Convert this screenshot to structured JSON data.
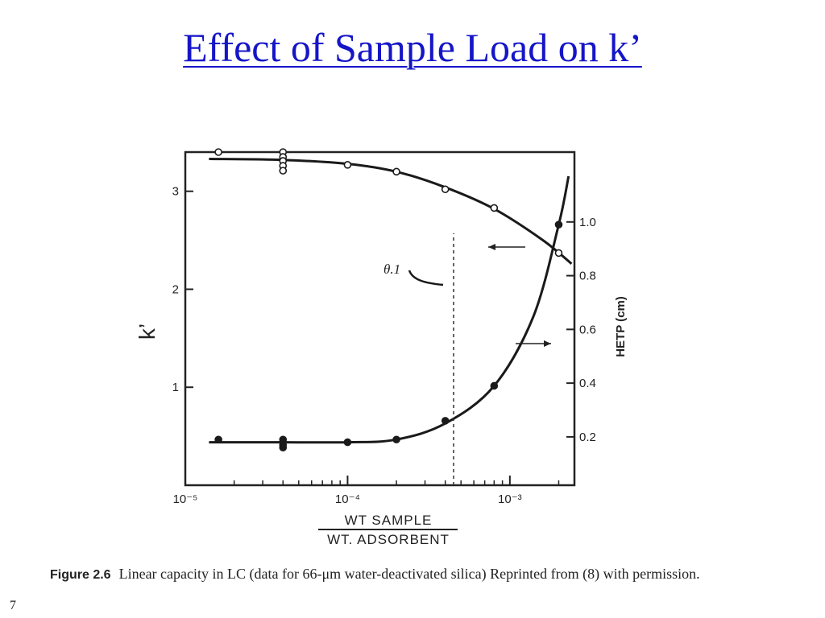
{
  "slide": {
    "title": "Effect of Sample Load on k’",
    "number": "7"
  },
  "caption": {
    "label": "Figure 2.6",
    "text": "Linear capacity in LC (data for 66-μm water-deactivated silica) Reprinted from (8) with permission."
  },
  "chart_data": {
    "type": "scatter",
    "x_scale": "log",
    "xlim": [
      1e-05,
      0.0025
    ],
    "x_ticks": [
      {
        "value": 1e-05,
        "label": "10⁻⁵"
      },
      {
        "value": 0.0001,
        "label": "10⁻⁴"
      },
      {
        "value": 0.001,
        "label": "10⁻³"
      }
    ],
    "xlabel_numerator": "WT SAMPLE",
    "xlabel_denominator": "WT. ADSORBENT",
    "ylabel": "k’",
    "ylim": [
      0,
      3.4
    ],
    "y_ticks": [
      {
        "value": 1,
        "label": "1"
      },
      {
        "value": 2,
        "label": "2"
      },
      {
        "value": 3,
        "label": "3"
      }
    ],
    "y2label": "HETP (cm)",
    "y2lim": [
      0.02,
      1.26
    ],
    "y2_ticks": [
      {
        "value": 0.2,
        "label": "0.2"
      },
      {
        "value": 0.4,
        "label": "0.4"
      },
      {
        "value": 0.6,
        "label": "0.6"
      },
      {
        "value": 0.8,
        "label": "0.8"
      },
      {
        "value": 1.0,
        "label": "1.0"
      }
    ],
    "annotation": {
      "text": "θ.1",
      "x": 0.00045
    },
    "series": [
      {
        "axis": "left",
        "marker": "open-circle",
        "points": [
          {
            "x": 1.6e-05,
            "y": 3.4
          },
          {
            "x": 4e-05,
            "y": 3.4
          },
          {
            "x": 4e-05,
            "y": 3.35
          },
          {
            "x": 4e-05,
            "y": 3.31
          },
          {
            "x": 4e-05,
            "y": 3.26
          },
          {
            "x": 4e-05,
            "y": 3.21
          },
          {
            "x": 0.0001,
            "y": 3.27
          },
          {
            "x": 0.0002,
            "y": 3.2
          },
          {
            "x": 0.0004,
            "y": 3.02
          },
          {
            "x": 0.0008,
            "y": 2.83
          },
          {
            "x": 0.002,
            "y": 2.37
          }
        ],
        "curve": [
          {
            "x": 1.4e-05,
            "y": 3.33
          },
          {
            "x": 4e-05,
            "y": 3.32
          },
          {
            "x": 0.0001,
            "y": 3.28
          },
          {
            "x": 0.0002,
            "y": 3.2
          },
          {
            "x": 0.0004,
            "y": 3.04
          },
          {
            "x": 0.0008,
            "y": 2.82
          },
          {
            "x": 0.0016,
            "y": 2.5
          },
          {
            "x": 0.0024,
            "y": 2.26
          }
        ]
      },
      {
        "axis": "right",
        "marker": "filled-circle",
        "points": [
          {
            "x": 1.6e-05,
            "y": 0.19
          },
          {
            "x": 4e-05,
            "y": 0.19
          },
          {
            "x": 4e-05,
            "y": 0.17
          },
          {
            "x": 4e-05,
            "y": 0.16
          },
          {
            "x": 0.0001,
            "y": 0.18
          },
          {
            "x": 0.0002,
            "y": 0.19
          },
          {
            "x": 0.0004,
            "y": 0.26
          },
          {
            "x": 0.0008,
            "y": 0.39
          },
          {
            "x": 0.002,
            "y": 0.99
          }
        ],
        "curve": [
          {
            "x": 1.4e-05,
            "y": 0.18
          },
          {
            "x": 4e-05,
            "y": 0.18
          },
          {
            "x": 0.0001,
            "y": 0.18
          },
          {
            "x": 0.0002,
            "y": 0.19
          },
          {
            "x": 0.0004,
            "y": 0.25
          },
          {
            "x": 0.0008,
            "y": 0.39
          },
          {
            "x": 0.0014,
            "y": 0.65
          },
          {
            "x": 0.002,
            "y": 0.99
          },
          {
            "x": 0.0023,
            "y": 1.17
          }
        ]
      }
    ]
  }
}
